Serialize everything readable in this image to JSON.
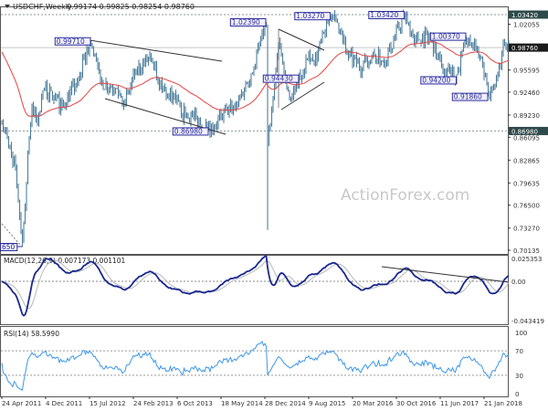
{
  "header": {
    "symbol": "USDCHF,Weekly",
    "ohlc": "0.99174 0.99825 0.98254 0.98760",
    "menu_icon": "triangle-down-icon"
  },
  "watermark": "ActionForex.com",
  "colors": {
    "bars": "#4f7f9c",
    "moving_average": "#e8423f",
    "macd": "#1a2890",
    "macd_signal": "#b8b8b8",
    "rsi": "#3d97e8",
    "annotation": "#2c2c9a",
    "current_price_bg": "#1a1a1a",
    "level_bg": "#2e4a4a"
  },
  "chart_data": [
    {
      "type": "ohlc-bar",
      "title": "USDCHF,Weekly",
      "price_axis": {
        "ylim": [
          0.70135,
          1.0342
        ],
        "ticks": [
          "1.02055",
          "0.95595",
          "0.92460",
          "0.89230",
          "0.86095",
          "0.82865",
          "0.79635",
          "0.76500",
          "0.73270",
          "0.70135"
        ],
        "current_price": "0.98760",
        "level_labels": [
          "1.03420",
          "0.86980"
        ]
      },
      "x_tick_labels": [
        "24 Apr 2011",
        "4 Dec 2011",
        "15 Jul 2012",
        "24 Feb 2013",
        "6 Oct 2013",
        "18 May 2014",
        "28 Dec 2014",
        "9 Aug 2015",
        "20 Mar 2016",
        "30 Oct 2016",
        "11 Jun 2017",
        "21 Jan 2018"
      ],
      "horizontal_levels": [
        1.0342,
        0.8698,
        0.9876
      ],
      "annotations": [
        {
          "text": "650",
          "date": "2011-08-07",
          "price": 0.7065
        },
        {
          "text": "0.99710",
          "date": "2012-07-22",
          "price": 0.9971
        },
        {
          "text": "0.86980",
          "date": "2014-03-16",
          "price": 0.8698
        },
        {
          "text": "1.02390",
          "date": "2015-01-04",
          "price": 1.0239
        },
        {
          "text": "0.94430",
          "date": "2015-06-21",
          "price": 0.9443
        },
        {
          "text": "1.03270",
          "date": "2015-11-29",
          "price": 1.0327
        },
        {
          "text": "1.03420",
          "date": "2016-12-11",
          "price": 1.0342
        },
        {
          "text": "0.94200",
          "date": "2017-09-03",
          "price": 0.942
        },
        {
          "text": "1.00370",
          "date": "2017-10-22",
          "price": 1.0037
        },
        {
          "text": "0.91860",
          "date": "2018-02-11",
          "price": 0.9186
        }
      ],
      "price_path": [
        [
          "2011-04-24",
          0.885
        ],
        [
          "2011-05-29",
          0.85
        ],
        [
          "2011-07-03",
          0.82
        ],
        [
          "2011-08-07",
          0.7065,
          "low"
        ],
        [
          "2011-09-11",
          0.86
        ],
        [
          "2011-09-25",
          0.905
        ],
        [
          "2011-10-23",
          0.88
        ],
        [
          "2011-11-27",
          0.93
        ],
        [
          "2012-02-26",
          0.905
        ],
        [
          "2012-05-06",
          0.935
        ],
        [
          "2012-07-22",
          0.9971,
          "high"
        ],
        [
          "2012-09-09",
          0.94
        ],
        [
          "2012-11-25",
          0.93
        ],
        [
          "2013-01-13",
          0.91
        ],
        [
          "2013-03-10",
          0.955
        ],
        [
          "2013-05-26",
          0.975,
          "high"
        ],
        [
          "2013-07-21",
          0.93
        ],
        [
          "2013-09-15",
          0.92
        ],
        [
          "2013-10-27",
          0.895
        ],
        [
          "2013-12-29",
          0.89
        ],
        [
          "2014-03-16",
          0.8698,
          "low"
        ],
        [
          "2014-05-18",
          0.89
        ],
        [
          "2014-08-10",
          0.91
        ],
        [
          "2014-11-02",
          0.96
        ],
        [
          "2015-01-04",
          1.0239,
          "high"
        ],
        [
          "2015-01-11",
          0.855,
          "crash"
        ],
        [
          "2015-02-15",
          0.93
        ],
        [
          "2015-03-08",
          0.995
        ],
        [
          "2015-04-19",
          0.93
        ],
        [
          "2015-05-10",
          0.915
        ],
        [
          "2015-06-21",
          0.9443,
          "low"
        ],
        [
          "2015-08-02",
          0.97
        ],
        [
          "2015-09-06",
          0.965
        ],
        [
          "2015-11-29",
          1.0327,
          "high"
        ],
        [
          "2016-01-24",
          1.01
        ],
        [
          "2016-02-28",
          0.975
        ],
        [
          "2016-05-08",
          0.96
        ],
        [
          "2016-06-26",
          0.975
        ],
        [
          "2016-09-04",
          0.97
        ],
        [
          "2016-12-11",
          1.0342,
          "high"
        ],
        [
          "2017-02-05",
          1.0
        ],
        [
          "2017-04-16",
          1.005
        ],
        [
          "2017-05-28",
          0.975
        ],
        [
          "2017-07-16",
          0.955
        ],
        [
          "2017-09-03",
          0.942,
          "low"
        ],
        [
          "2017-10-22",
          1.0037,
          "high"
        ],
        [
          "2017-12-10",
          0.985
        ],
        [
          "2018-01-14",
          0.965
        ],
        [
          "2018-02-11",
          0.9186,
          "low"
        ],
        [
          "2018-03-11",
          0.935
        ],
        [
          "2018-04-08",
          0.96
        ],
        [
          "2018-05-06",
          1.0,
          "high"
        ],
        [
          "2018-05-20",
          0.99
        ],
        [
          "2018-05-27",
          0.9876
        ]
      ]
    },
    {
      "type": "line",
      "title": "MACD(12,26,9) 0.007173 0.001101",
      "ylim": [
        -0.043419,
        0.025353
      ],
      "ticks": [
        "0.025353",
        "0.00",
        "-0.043419"
      ]
    },
    {
      "type": "line",
      "title": "RSI(14) 58.5990",
      "ylim": [
        0,
        100
      ],
      "ticks": [
        "100",
        "70",
        "30",
        "0"
      ],
      "levels": [
        70,
        30
      ]
    }
  ]
}
